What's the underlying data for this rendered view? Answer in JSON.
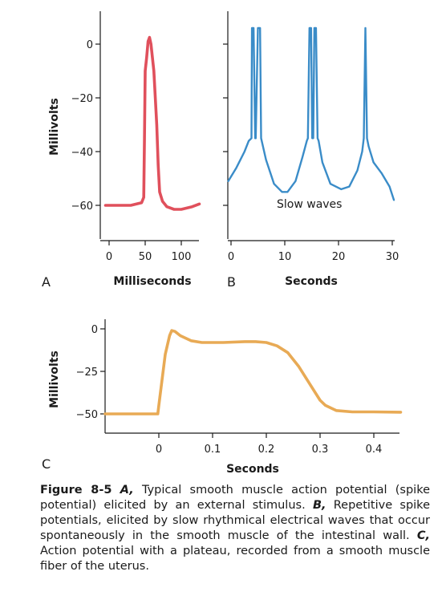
{
  "chart_data": [
    {
      "panel": "A",
      "type": "line",
      "xlabel": "Milliseconds",
      "ylabel": "Millivolts",
      "xticks": [
        0,
        50,
        100
      ],
      "yticks": [
        0,
        -20,
        -40,
        -60
      ],
      "ytick_labels": [
        "0",
        "−20",
        "−40",
        "−60"
      ],
      "xlim": [
        -10,
        125
      ],
      "ylim": [
        -72,
        12
      ],
      "color": "#e0505c",
      "x": [
        -5,
        10,
        30,
        45,
        48,
        49,
        50,
        52,
        54,
        56,
        58,
        62,
        66,
        68,
        70,
        74,
        80,
        90,
        100,
        115,
        125
      ],
      "y": [
        -60,
        -60,
        -60,
        -59,
        -57,
        -35,
        -10,
        -5,
        1,
        2.5,
        0,
        -10,
        -30,
        -45,
        -55,
        -58.5,
        -60.5,
        -61.5,
        -61.5,
        -60.5,
        -59.5
      ]
    },
    {
      "panel": "B",
      "type": "line",
      "xlabel": "Seconds",
      "ylabel": "",
      "xticks": [
        0,
        10,
        20,
        30
      ],
      "xlim": [
        -0.5,
        31
      ],
      "ylim": [
        -72,
        12
      ],
      "color": "#3a8cc8",
      "annotation": "Slow waves",
      "x": [
        -0.5,
        1,
        2.5,
        3.3,
        3.8,
        3.9,
        4.2,
        4.5,
        4.6,
        5.0,
        5.4,
        5.6,
        6.5,
        8,
        9.5,
        10.5,
        12,
        13.3,
        14.1,
        14.3,
        14.6,
        14.9,
        15.1,
        15.3,
        15.5,
        15.8,
        16.1,
        16.3,
        17,
        18.5,
        20.5,
        22,
        23.5,
        24.4,
        24.7,
        25.0,
        25.3,
        25.6,
        26.5,
        28,
        29.5,
        30.3
      ],
      "y": [
        -51,
        -46,
        -40,
        -36,
        -35,
        6,
        6,
        -35,
        -35,
        6,
        6,
        -35,
        -43,
        -52,
        -55,
        -55,
        -51,
        -42,
        -36,
        -35,
        6,
        6,
        -35,
        -35,
        6,
        6,
        -35,
        -36,
        -44,
        -52,
        -54,
        -53,
        -47,
        -40,
        -35,
        6,
        -35,
        -38,
        -44,
        -48,
        -53,
        -58
      ]
    },
    {
      "panel": "C",
      "type": "line",
      "xlabel": "Seconds",
      "ylabel": "Millivolts",
      "xticks": [
        0,
        0.1,
        0.2,
        0.3,
        0.4
      ],
      "yticks": [
        0,
        -25,
        -50
      ],
      "ytick_labels": [
        "0",
        "−25",
        "−50"
      ],
      "xlim": [
        -0.1,
        0.45
      ],
      "ylim": [
        -60,
        0
      ],
      "color": "#e8aa55",
      "x": [
        -0.1,
        -0.05,
        -0.002,
        0.0,
        0.012,
        0.02,
        0.024,
        0.03,
        0.04,
        0.06,
        0.08,
        0.12,
        0.16,
        0.18,
        0.2,
        0.22,
        0.24,
        0.26,
        0.28,
        0.3,
        0.31,
        0.33,
        0.36,
        0.4,
        0.45
      ],
      "y": [
        -50,
        -50,
        -50,
        -45,
        -15,
        -4,
        -1,
        -1.5,
        -4,
        -7,
        -8,
        -8,
        -7.5,
        -7.5,
        -8,
        -10,
        -14,
        -22,
        -32,
        -42,
        -45,
        -48,
        -48.8,
        -48.8,
        -49
      ]
    }
  ],
  "panel_labels": [
    "A",
    "B",
    "C"
  ],
  "caption": {
    "figure_label": "Figure 8-5",
    "a_letter": "A,",
    "a_text": " Typical smooth muscle action potential (spike potential) elicited by an external stimulus. ",
    "b_letter": "B,",
    "b_text": " Repetitive spike potentials, elicited by slow rhythmical electrical waves that occur spontaneously in the smooth muscle of the intestinal wall. ",
    "c_letter": "C,",
    "c_text": " Action potential with a plateau, recorded from a smooth muscle fiber of the uterus."
  }
}
